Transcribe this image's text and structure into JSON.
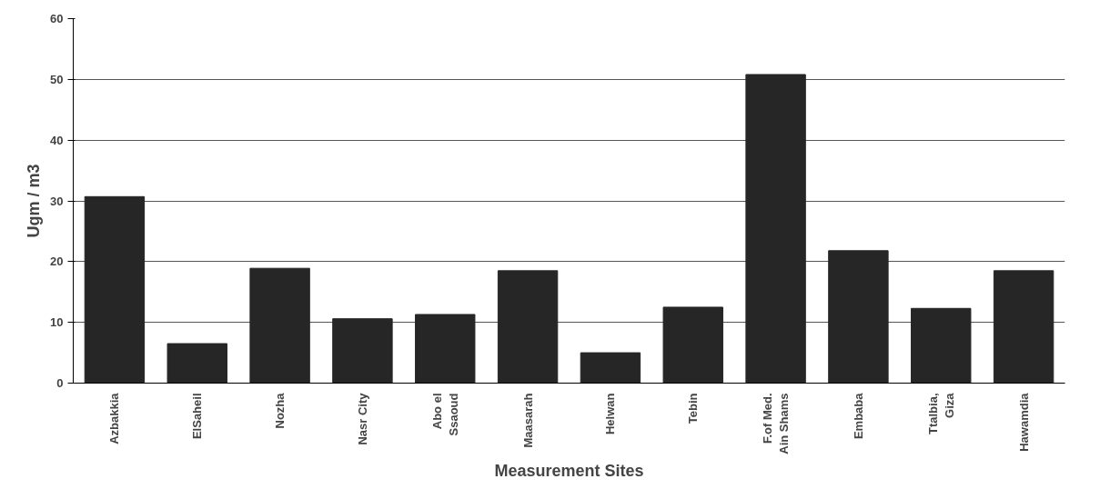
{
  "chart_data": {
    "type": "bar",
    "xlabel": "Measurement Sites",
    "ylabel": "Ugm / m3",
    "categories": [
      "Azbakkia",
      "ElSaheil",
      "Nozha",
      "Nasr City",
      "Abo el\nSsaoud",
      "Maasarah",
      "Helwan",
      "Tebin",
      "F.of Med.\nAin Shams",
      "Embaba",
      "Ttalbia,\nGiza",
      "Hawamdia"
    ],
    "values": [
      30.7,
      6.5,
      18.9,
      10.6,
      11.3,
      18.5,
      5.0,
      12.5,
      50.8,
      21.8,
      12.3,
      18.5
    ],
    "color": "#262626",
    "ylim": [
      0,
      60
    ],
    "yticks": [
      0,
      10,
      20,
      30,
      40,
      50,
      60
    ],
    "grid": "y"
  }
}
